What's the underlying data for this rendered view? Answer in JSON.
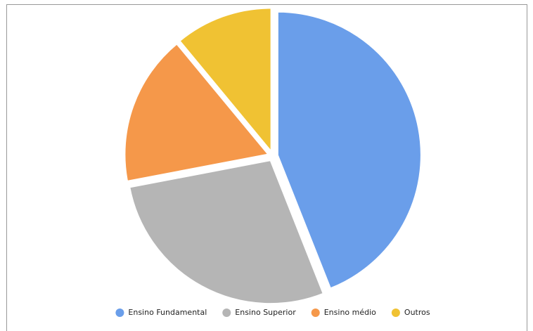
{
  "chart_data": {
    "type": "pie",
    "categories": [
      "Ensino Fundamental",
      "Ensino Superior",
      "Ensino médio",
      "Outros"
    ],
    "values": [
      44,
      28,
      17,
      11
    ],
    "colors": [
      "#6a9eea",
      "#b5b5b5",
      "#f5984a",
      "#f0c233"
    ],
    "legend": "bottom"
  }
}
